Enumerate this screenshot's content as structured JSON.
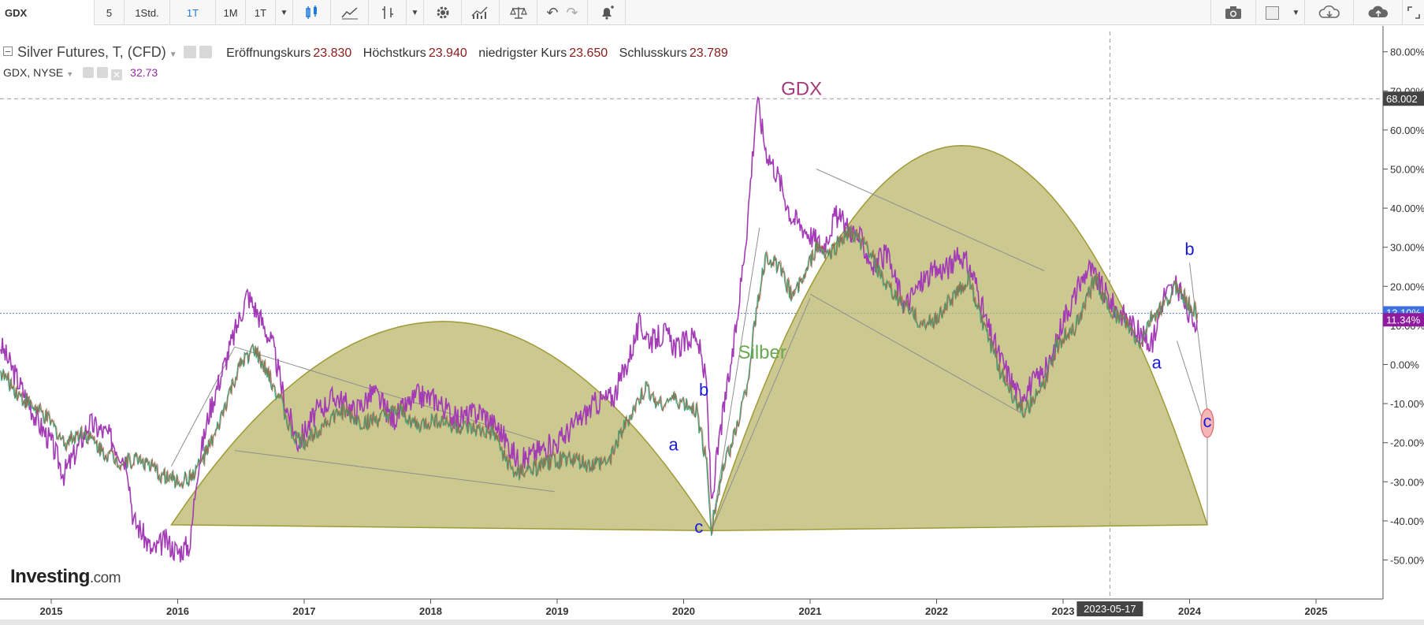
{
  "toolbar": {
    "symbol": "GDX",
    "intervals": [
      "5",
      "1Std.",
      "1T",
      "1M",
      "1T"
    ],
    "active_interval_index": 2
  },
  "legend": {
    "main": {
      "title": "Silver Futures, T, (CFD)",
      "open_label": "Eröffnungskurs",
      "open_value": "23.830",
      "high_label": "Höchstkurs",
      "high_value": "23.940",
      "low_label": "niedrigster Kurs",
      "low_value": "23.650",
      "close_label": "Schlusskurs",
      "close_value": "23.789"
    },
    "compare": {
      "title": "GDX, NYSE",
      "value": "32.73"
    }
  },
  "logo": {
    "brand": "Investing",
    "suffix": ".com"
  },
  "chart_data": {
    "type": "line",
    "title": "",
    "y_unit": "percent change",
    "ylim": [
      -55,
      83
    ],
    "xlim": [
      2014.6,
      2025.5
    ],
    "y_ticks": [
      80,
      70,
      60,
      50,
      40,
      30,
      20,
      10,
      0,
      -10,
      -20,
      -30,
      -40,
      -50
    ],
    "y_tick_labels": [
      "80.00%",
      "70.00%",
      "60.00%",
      "50.00%",
      "40.00%",
      "30.00%",
      "20.00%",
      "10.00%",
      "0.00%",
      "-10.00%",
      "-20.00%",
      "-30.00%",
      "-40.00%",
      "-50.00%"
    ],
    "x_ticks": [
      2015,
      2016,
      2017,
      2018,
      2019,
      2020,
      2021,
      2022,
      2023,
      2024,
      2025
    ],
    "x_tick_labels": [
      "2015",
      "2016",
      "2017",
      "2018",
      "2019",
      "2020",
      "2021",
      "2022",
      "2023",
      "2024",
      "2025"
    ],
    "crosshair": {
      "x": 2023.37,
      "x_label": "2023-05-17",
      "y": 68.0,
      "y_label": "68.002"
    },
    "series": [
      {
        "name": "GDX",
        "color": "#a23bb5",
        "points": [
          [
            2014.6,
            5
          ],
          [
            2014.75,
            -5
          ],
          [
            2014.9,
            -15
          ],
          [
            2015.0,
            -20
          ],
          [
            2015.1,
            -28
          ],
          [
            2015.2,
            -22
          ],
          [
            2015.3,
            -15
          ],
          [
            2015.45,
            -18
          ],
          [
            2015.6,
            -25
          ],
          [
            2015.65,
            -40
          ],
          [
            2015.7,
            -42
          ],
          [
            2015.8,
            -48
          ],
          [
            2015.9,
            -45
          ],
          [
            2016.0,
            -48
          ],
          [
            2016.1,
            -46
          ],
          [
            2016.15,
            -28
          ],
          [
            2016.25,
            -12
          ],
          [
            2016.35,
            -2
          ],
          [
            2016.45,
            8
          ],
          [
            2016.55,
            18
          ],
          [
            2016.65,
            12
          ],
          [
            2016.75,
            5
          ],
          [
            2016.85,
            -10
          ],
          [
            2016.95,
            -20
          ],
          [
            2017.1,
            -12
          ],
          [
            2017.25,
            -8
          ],
          [
            2017.4,
            -12
          ],
          [
            2017.55,
            -7
          ],
          [
            2017.7,
            -14
          ],
          [
            2017.9,
            -8
          ],
          [
            2018.05,
            -9
          ],
          [
            2018.2,
            -14
          ],
          [
            2018.4,
            -12
          ],
          [
            2018.55,
            -17
          ],
          [
            2018.7,
            -25
          ],
          [
            2018.85,
            -22
          ],
          [
            2019.0,
            -20
          ],
          [
            2019.15,
            -15
          ],
          [
            2019.3,
            -10
          ],
          [
            2019.45,
            -8
          ],
          [
            2019.55,
            0
          ],
          [
            2019.65,
            10
          ],
          [
            2019.75,
            6
          ],
          [
            2019.85,
            8
          ],
          [
            2019.95,
            4
          ],
          [
            2020.1,
            8
          ],
          [
            2020.18,
            -5
          ],
          [
            2020.22,
            -35
          ],
          [
            2020.3,
            -15
          ],
          [
            2020.4,
            5
          ],
          [
            2020.5,
            35
          ],
          [
            2020.58,
            68
          ],
          [
            2020.65,
            55
          ],
          [
            2020.75,
            48
          ],
          [
            2020.85,
            38
          ],
          [
            2020.95,
            35
          ],
          [
            2021.1,
            30
          ],
          [
            2021.2,
            38
          ],
          [
            2021.3,
            35
          ],
          [
            2021.4,
            32
          ],
          [
            2021.5,
            25
          ],
          [
            2021.6,
            28
          ],
          [
            2021.75,
            15
          ],
          [
            2021.9,
            22
          ],
          [
            2022.0,
            24
          ],
          [
            2022.1,
            25
          ],
          [
            2022.2,
            28
          ],
          [
            2022.3,
            22
          ],
          [
            2022.4,
            10
          ],
          [
            2022.5,
            2
          ],
          [
            2022.65,
            -8
          ],
          [
            2022.75,
            -5
          ],
          [
            2022.9,
            0
          ],
          [
            2023.0,
            12
          ],
          [
            2023.1,
            18
          ],
          [
            2023.2,
            25
          ],
          [
            2023.3,
            20
          ],
          [
            2023.4,
            15
          ],
          [
            2023.5,
            12
          ],
          [
            2023.6,
            8
          ],
          [
            2023.7,
            5
          ],
          [
            2023.8,
            18
          ],
          [
            2023.9,
            20
          ],
          [
            2024.0,
            12
          ],
          [
            2024.06,
            11.34
          ]
        ]
      },
      {
        "name": "Silber",
        "color": "#3aa67a",
        "points": [
          [
            2014.6,
            -2
          ],
          [
            2014.75,
            -8
          ],
          [
            2014.9,
            -12
          ],
          [
            2015.0,
            -15
          ],
          [
            2015.1,
            -20
          ],
          [
            2015.25,
            -17
          ],
          [
            2015.4,
            -22
          ],
          [
            2015.55,
            -25
          ],
          [
            2015.7,
            -24
          ],
          [
            2015.85,
            -28
          ],
          [
            2016.0,
            -30
          ],
          [
            2016.1,
            -29
          ],
          [
            2016.2,
            -24
          ],
          [
            2016.3,
            -18
          ],
          [
            2016.4,
            -8
          ],
          [
            2016.5,
            0
          ],
          [
            2016.6,
            4
          ],
          [
            2016.7,
            -2
          ],
          [
            2016.8,
            -8
          ],
          [
            2016.9,
            -18
          ],
          [
            2017.0,
            -20
          ],
          [
            2017.15,
            -15
          ],
          [
            2017.3,
            -12
          ],
          [
            2017.45,
            -15
          ],
          [
            2017.6,
            -14
          ],
          [
            2017.75,
            -12
          ],
          [
            2017.9,
            -16
          ],
          [
            2018.05,
            -14
          ],
          [
            2018.2,
            -16
          ],
          [
            2018.35,
            -17
          ],
          [
            2018.5,
            -18
          ],
          [
            2018.65,
            -28
          ],
          [
            2018.8,
            -27
          ],
          [
            2018.95,
            -25
          ],
          [
            2019.1,
            -24
          ],
          [
            2019.25,
            -26
          ],
          [
            2019.4,
            -25
          ],
          [
            2019.5,
            -18
          ],
          [
            2019.6,
            -12
          ],
          [
            2019.7,
            -6
          ],
          [
            2019.8,
            -10
          ],
          [
            2019.9,
            -9
          ],
          [
            2020.0,
            -10
          ],
          [
            2020.1,
            -12
          ],
          [
            2020.18,
            -25
          ],
          [
            2020.22,
            -42
          ],
          [
            2020.3,
            -28
          ],
          [
            2020.4,
            -18
          ],
          [
            2020.5,
            -5
          ],
          [
            2020.58,
            15
          ],
          [
            2020.65,
            28
          ],
          [
            2020.75,
            25
          ],
          [
            2020.85,
            18
          ],
          [
            2020.95,
            22
          ],
          [
            2021.05,
            30
          ],
          [
            2021.15,
            28
          ],
          [
            2021.3,
            34
          ],
          [
            2021.45,
            30
          ],
          [
            2021.6,
            20
          ],
          [
            2021.75,
            15
          ],
          [
            2021.9,
            10
          ],
          [
            2022.0,
            12
          ],
          [
            2022.15,
            18
          ],
          [
            2022.25,
            22
          ],
          [
            2022.35,
            12
          ],
          [
            2022.5,
            -2
          ],
          [
            2022.6,
            -8
          ],
          [
            2022.7,
            -12
          ],
          [
            2022.85,
            -5
          ],
          [
            2022.95,
            5
          ],
          [
            2023.1,
            10
          ],
          [
            2023.25,
            22
          ],
          [
            2023.35,
            15
          ],
          [
            2023.5,
            10
          ],
          [
            2023.6,
            5
          ],
          [
            2023.7,
            12
          ],
          [
            2023.8,
            15
          ],
          [
            2023.9,
            20
          ],
          [
            2024.0,
            15
          ],
          [
            2024.06,
            13.1
          ]
        ]
      }
    ],
    "annotations": {
      "series_labels": [
        {
          "text": "GDX",
          "x": 2020.77,
          "y": 69
        },
        {
          "text": "Silber",
          "x": 2020.43,
          "y": 1.5
        }
      ],
      "wave_labels": [
        {
          "text": "a",
          "x": 2019.92,
          "y": -22
        },
        {
          "text": "b",
          "x": 2020.16,
          "y": -8
        },
        {
          "text": "c",
          "x": 2020.12,
          "y": -43
        },
        {
          "text": "a",
          "x": 2023.74,
          "y": -1
        },
        {
          "text": "b",
          "x": 2024.0,
          "y": 28
        },
        {
          "text": "c",
          "x": 2024.14,
          "y": -16
        }
      ],
      "arcs": [
        {
          "start": [
            2015.95,
            -41
          ],
          "end": [
            2020.22,
            -42.5
          ],
          "peak_y": 11,
          "peak_x": 2018.1
        },
        {
          "start": [
            2020.22,
            -42.5
          ],
          "end": [
            2024.14,
            -41
          ],
          "peak_y": 56,
          "peak_x": 2022.2
        }
      ],
      "trend_lines": [
        [
          [
            2015.95,
            -26
          ],
          [
            2016.45,
            4.5
          ],
          [
            2018.85,
            -19.5
          ]
        ],
        [
          [
            2016.45,
            -22
          ],
          [
            2018.98,
            -32.5
          ]
        ],
        [
          [
            2020.22,
            -42.5
          ],
          [
            2020.6,
            35
          ]
        ],
        [
          [
            2020.22,
            -42.5
          ],
          [
            2021.0,
            17
          ]
        ],
        [
          [
            2021.05,
            50
          ],
          [
            2022.85,
            24
          ]
        ],
        [
          [
            2021.0,
            18
          ],
          [
            2022.7,
            -13
          ]
        ],
        [
          [
            2024.0,
            26
          ],
          [
            2024.14,
            -12
          ]
        ],
        [
          [
            2023.9,
            6
          ],
          [
            2024.14,
            -18
          ]
        ]
      ],
      "highlight_ellipse": {
        "x": 2024.14,
        "y": -15
      }
    },
    "last_values": [
      {
        "series": "Silber",
        "label": "13.10%",
        "y": 13.1,
        "color": "#3c6fe0"
      },
      {
        "series": "GDX",
        "label": "11.34%",
        "y": 11.34,
        "color": "#8e1a9e"
      }
    ]
  }
}
